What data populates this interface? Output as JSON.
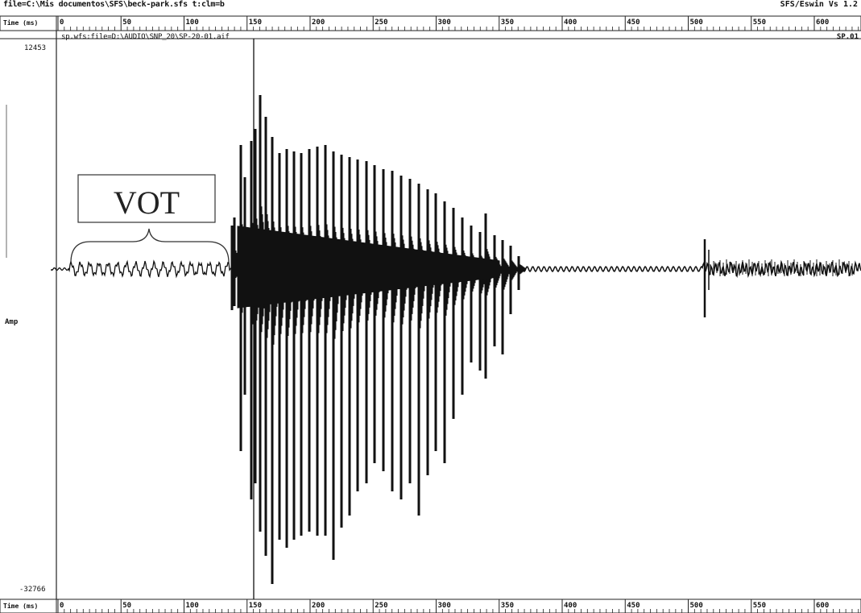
{
  "header": {
    "file_path": "file=C:\\Mis documentos\\SFS\\beck-park.sfs t:clm=b",
    "app_version": "SFS/Eswin Vs 1.2"
  },
  "top_axis": {
    "label": "Time (ms)",
    "ticks": [
      "0",
      "50",
      "100",
      "150",
      "200",
      "250",
      "300",
      "350",
      "400",
      "450",
      "500",
      "550",
      "600"
    ]
  },
  "bottom_axis": {
    "label": "Time (ms)",
    "ticks": [
      "0",
      "50",
      "100",
      "150",
      "200",
      "250",
      "300",
      "350",
      "400",
      "450",
      "500",
      "550",
      "600"
    ]
  },
  "waveform_panel": {
    "source": "sp.wfs:file=D:\\AUDIO\\SNP_20\\SP-20-01.aif",
    "right_value": "SP.01",
    "y_max": "12453",
    "y_min": "-32766",
    "y_label": "Amp"
  },
  "annotation": {
    "label": "VOT"
  }
}
